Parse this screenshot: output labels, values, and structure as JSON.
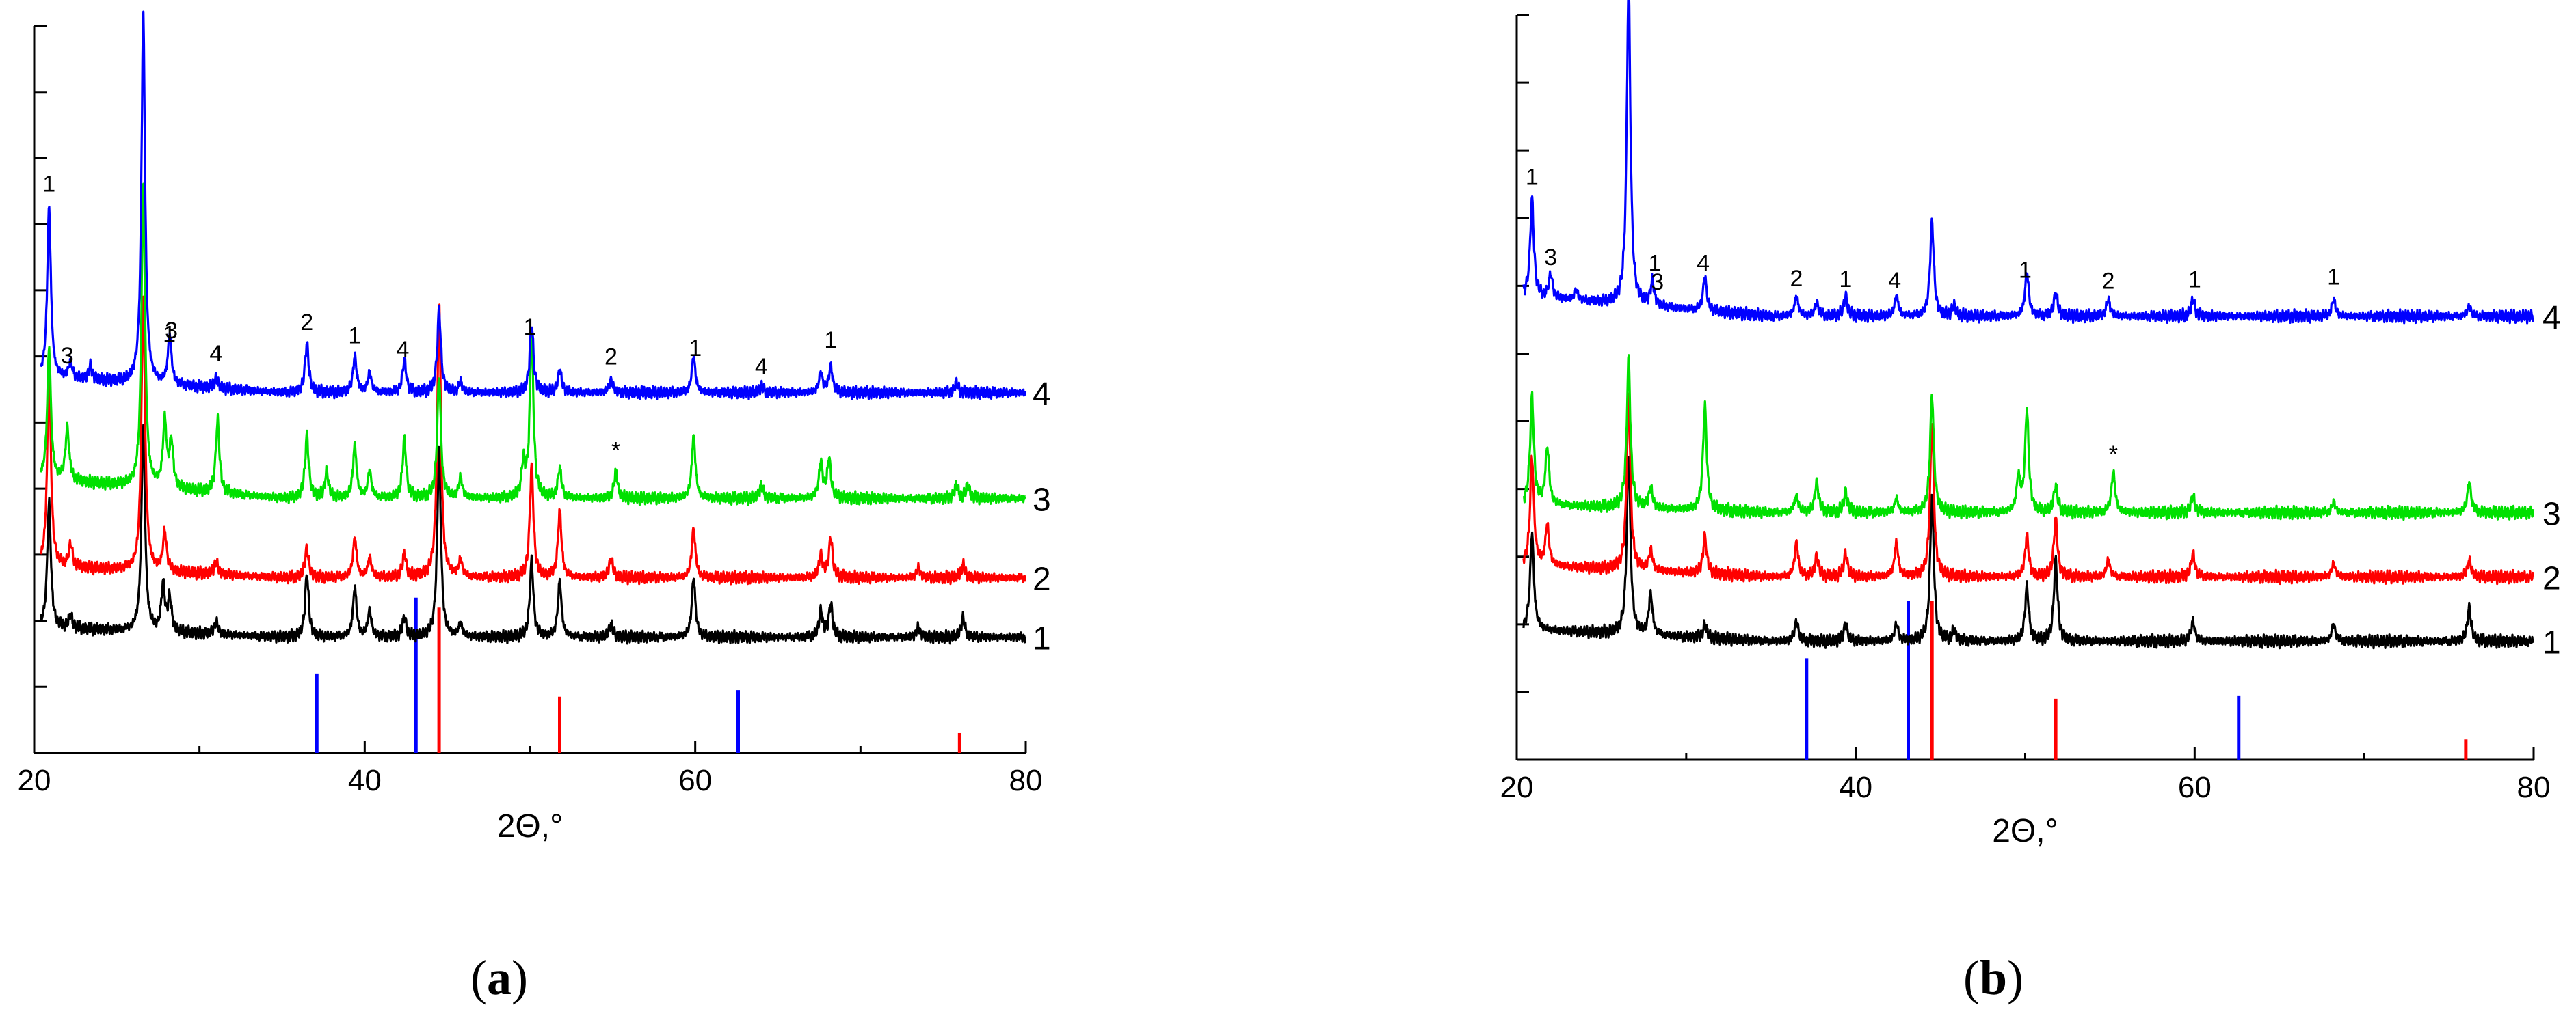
{
  "colors": {
    "curve_1": "#000000",
    "curve_2": "#ff0000",
    "curve_3": "#00e000",
    "curve_4": "#0000ff",
    "ref_a": "#0000ff",
    "ref_b": "#ff0000"
  },
  "panels": [
    {
      "label": "a",
      "xlabel": "2Θ,°",
      "xticks": [
        "20",
        "40",
        "60",
        "80"
      ],
      "curve_labels": [
        "1",
        "2",
        "3",
        "4"
      ],
      "peak_labels": [
        {
          "text": "1",
          "x": 20.9,
          "curve": 4
        },
        {
          "text": "3",
          "x": 22.0,
          "curve": 4
        },
        {
          "text": "1",
          "x": 27.1,
          "curve": 4
        },
        {
          "text": "3",
          "x": 28.3,
          "curve": 4
        },
        {
          "text": "4",
          "x": 31.0,
          "curve": 4
        },
        {
          "text": "2",
          "x": 36.5,
          "curve": 4
        },
        {
          "text": "1",
          "x": 39.4,
          "curve": 4
        },
        {
          "text": "4",
          "x": 42.3,
          "curve": 4
        },
        {
          "text": "1",
          "x": 50.0,
          "curve": 4
        },
        {
          "text": "2",
          "x": 54.9,
          "curve": 4
        },
        {
          "text": "1",
          "x": 60.0,
          "curve": 4
        },
        {
          "text": "4",
          "x": 64.0,
          "curve": 4
        },
        {
          "text": "1",
          "x": 68.2,
          "curve": 4
        },
        {
          "text": "*",
          "x": 55.2,
          "curve": 3
        }
      ]
    },
    {
      "label": "b",
      "xlabel": "2Θ,°",
      "xticks": [
        "20",
        "40",
        "60",
        "80"
      ],
      "curve_labels": [
        "1",
        "2",
        "3",
        "4"
      ],
      "peak_labels": [
        {
          "text": "1",
          "x": 20.9,
          "curve": 4
        },
        {
          "text": "3",
          "x": 22.0,
          "curve": 4
        },
        {
          "text": "1",
          "x": 27.1,
          "curve": 4
        },
        {
          "text": "3",
          "x": 28.3,
          "curve": 4
        },
        {
          "text": "4",
          "x": 31.0,
          "curve": 4
        },
        {
          "text": "2",
          "x": 36.5,
          "curve": 4
        },
        {
          "text": "1",
          "x": 39.4,
          "curve": 4
        },
        {
          "text": "4",
          "x": 42.3,
          "curve": 4
        },
        {
          "text": "1",
          "x": 50.0,
          "curve": 4
        },
        {
          "text": "2",
          "x": 54.9,
          "curve": 4
        },
        {
          "text": "1",
          "x": 60.0,
          "curve": 4
        },
        {
          "text": "1",
          "x": 68.2,
          "curve": 4
        },
        {
          "text": "*",
          "x": 55.2,
          "curve": 3
        }
      ]
    }
  ],
  "chart_data": [
    {
      "type": "line",
      "panel": "a",
      "xlabel": "2Θ,°",
      "xlim": [
        20,
        80
      ],
      "ylim": [
        0,
        11
      ],
      "x_ticks": [
        20,
        40,
        60,
        80
      ],
      "reference_lines": [
        {
          "x": 37.1,
          "height": 1.2,
          "color": "#0000ff"
        },
        {
          "x": 43.1,
          "height": 2.35,
          "color": "#0000ff"
        },
        {
          "x": 44.5,
          "height": 2.2,
          "color": "#ff0000"
        },
        {
          "x": 51.8,
          "height": 0.85,
          "color": "#ff0000"
        },
        {
          "x": 62.6,
          "height": 0.95,
          "color": "#0000ff"
        },
        {
          "x": 76.0,
          "height": 0.3,
          "color": "#ff0000"
        }
      ],
      "series": [
        {
          "name": "1",
          "baseline": 1.75,
          "tilt": 0.25,
          "color": "#000000",
          "peaks": [
            [
              20.9,
              1.9
            ],
            [
              22.2,
              0.2
            ],
            [
              26.6,
              3.1
            ],
            [
              27.8,
              0.7
            ],
            [
              28.2,
              0.5
            ],
            [
              31.0,
              0.2
            ],
            [
              36.5,
              0.95
            ],
            [
              39.4,
              0.75
            ],
            [
              40.3,
              0.4
            ],
            [
              42.4,
              0.3
            ],
            [
              44.5,
              2.85
            ],
            [
              45.8,
              0.2
            ],
            [
              50.1,
              1.15
            ],
            [
              51.8,
              0.85
            ],
            [
              54.9,
              0.2
            ],
            [
              59.9,
              0.9
            ],
            [
              67.6,
              0.4
            ],
            [
              68.2,
              0.5
            ],
            [
              73.5,
              0.15
            ],
            [
              76.2,
              0.3
            ]
          ]
        },
        {
          "name": "2",
          "baseline": 2.65,
          "tilt": 0.3,
          "color": "#ff0000",
          "peaks": [
            [
              20.9,
              3.0
            ],
            [
              22.2,
              0.35
            ],
            [
              26.6,
              4.2
            ],
            [
              27.9,
              0.6
            ],
            [
              31.0,
              0.2
            ],
            [
              36.5,
              0.45
            ],
            [
              39.4,
              0.6
            ],
            [
              40.3,
              0.3
            ],
            [
              42.4,
              0.35
            ],
            [
              44.5,
              4.2
            ],
            [
              45.8,
              0.25
            ],
            [
              50.1,
              1.7
            ],
            [
              51.8,
              1.0
            ],
            [
              54.9,
              0.3
            ],
            [
              59.9,
              0.75
            ],
            [
              67.6,
              0.35
            ],
            [
              68.2,
              0.6
            ],
            [
              73.5,
              0.15
            ],
            [
              76.2,
              0.2
            ]
          ]
        },
        {
          "name": "3",
          "baseline": 3.85,
          "tilt": 0.5,
          "color": "#00e000",
          "peaks": [
            [
              20.9,
              2.0
            ],
            [
              22.0,
              0.8
            ],
            [
              26.6,
              4.6
            ],
            [
              27.9,
              1.0
            ],
            [
              28.3,
              0.7
            ],
            [
              31.1,
              1.1
            ],
            [
              36.5,
              0.95
            ],
            [
              37.7,
              0.4
            ],
            [
              39.4,
              0.8
            ],
            [
              40.3,
              0.4
            ],
            [
              42.4,
              0.9
            ],
            [
              44.5,
              1.85
            ],
            [
              45.8,
              0.3
            ],
            [
              49.6,
              0.5
            ],
            [
              50.1,
              2.5
            ],
            [
              51.8,
              0.45
            ],
            [
              55.2,
              0.4
            ],
            [
              59.9,
              0.95
            ],
            [
              64.0,
              0.2
            ],
            [
              67.6,
              0.55
            ],
            [
              68.1,
              0.6
            ],
            [
              75.8,
              0.2
            ],
            [
              76.5,
              0.2
            ]
          ]
        },
        {
          "name": "4",
          "baseline": 5.45,
          "tilt": 0.4,
          "color": "#0000ff",
          "peaks": [
            [
              20.9,
              2.6
            ],
            [
              22.2,
              0.25
            ],
            [
              23.4,
              0.2
            ],
            [
              26.6,
              5.6
            ],
            [
              28.2,
              0.75
            ],
            [
              31.0,
              0.15
            ],
            [
              36.5,
              0.75
            ],
            [
              39.4,
              0.55
            ],
            [
              40.3,
              0.3
            ],
            [
              42.4,
              0.5
            ],
            [
              44.5,
              1.25
            ],
            [
              45.8,
              0.15
            ],
            [
              50.1,
              1.05
            ],
            [
              51.8,
              0.35
            ],
            [
              54.9,
              0.2
            ],
            [
              59.9,
              0.55
            ],
            [
              64.0,
              0.1
            ],
            [
              67.6,
              0.3
            ],
            [
              68.2,
              0.4
            ],
            [
              75.8,
              0.15
            ]
          ]
        }
      ]
    },
    {
      "type": "line",
      "panel": "b",
      "xlabel": "2Θ,°",
      "xlim": [
        20,
        80
      ],
      "ylim": [
        0,
        11
      ],
      "x_ticks": [
        20,
        40,
        60,
        80
      ],
      "reference_lines": [
        {
          "x": 37.1,
          "height": 1.5,
          "color": "#0000ff"
        },
        {
          "x": 43.1,
          "height": 2.35,
          "color": "#0000ff"
        },
        {
          "x": 44.5,
          "height": 2.35,
          "color": "#ff0000"
        },
        {
          "x": 51.8,
          "height": 0.9,
          "color": "#ff0000"
        },
        {
          "x": 62.6,
          "height": 0.95,
          "color": "#0000ff"
        },
        {
          "x": 76.0,
          "height": 0.3,
          "color": "#ff0000"
        }
      ],
      "series": [
        {
          "name": "1",
          "baseline": 1.75,
          "tilt": 0.3,
          "color": "#000000",
          "peaks": [
            [
              20.9,
              1.45
            ],
            [
              26.6,
              2.65
            ],
            [
              27.9,
              0.6
            ],
            [
              31.1,
              0.2
            ],
            [
              36.5,
              0.3
            ],
            [
              39.4,
              0.25
            ],
            [
              42.4,
              0.25
            ],
            [
              44.5,
              2.15
            ],
            [
              45.8,
              0.15
            ],
            [
              50.1,
              0.8
            ],
            [
              51.8,
              1.2
            ],
            [
              59.9,
              0.3
            ],
            [
              68.2,
              0.25
            ],
            [
              76.2,
              0.5
            ]
          ]
        },
        {
          "name": "2",
          "baseline": 2.7,
          "tilt": 0.3,
          "color": "#ff0000",
          "peaks": [
            [
              20.9,
              1.6
            ],
            [
              21.8,
              0.6
            ],
            [
              26.6,
              2.6
            ],
            [
              27.9,
              0.3
            ],
            [
              31.1,
              0.55
            ],
            [
              36.5,
              0.5
            ],
            [
              37.7,
              0.3
            ],
            [
              39.4,
              0.35
            ],
            [
              42.4,
              0.5
            ],
            [
              44.5,
              2.3
            ],
            [
              50.1,
              0.6
            ],
            [
              51.8,
              0.85
            ],
            [
              54.9,
              0.25
            ],
            [
              59.9,
              0.35
            ],
            [
              68.2,
              0.2
            ],
            [
              76.2,
              0.25
            ]
          ]
        },
        {
          "name": "3",
          "baseline": 3.65,
          "tilt": 0.2,
          "color": "#00e000",
          "peaks": [
            [
              20.9,
              1.6
            ],
            [
              21.8,
              0.85
            ],
            [
              26.6,
              2.2
            ],
            [
              27.9,
              0.3
            ],
            [
              31.1,
              1.55
            ],
            [
              36.5,
              0.25
            ],
            [
              37.7,
              0.45
            ],
            [
              39.4,
              0.3
            ],
            [
              42.4,
              0.2
            ],
            [
              44.5,
              1.75
            ],
            [
              49.6,
              0.5
            ],
            [
              50.1,
              1.5
            ],
            [
              51.8,
              0.4
            ],
            [
              55.2,
              0.6
            ],
            [
              59.9,
              0.25
            ],
            [
              68.2,
              0.15
            ],
            [
              76.2,
              0.45
            ]
          ]
        },
        {
          "name": "4",
          "baseline": 6.55,
          "tilt": 0.5,
          "color": "#0000ff",
          "peaks": [
            [
              20.9,
              1.45
            ],
            [
              22.0,
              0.35
            ],
            [
              23.5,
              0.15
            ],
            [
              26.6,
              4.75
            ],
            [
              28.0,
              0.35
            ],
            [
              31.1,
              0.5
            ],
            [
              36.5,
              0.3
            ],
            [
              37.7,
              0.2
            ],
            [
              39.4,
              0.3
            ],
            [
              42.4,
              0.3
            ],
            [
              44.5,
              1.4
            ],
            [
              45.8,
              0.15
            ],
            [
              50.1,
              0.65
            ],
            [
              51.8,
              0.35
            ],
            [
              54.9,
              0.25
            ],
            [
              59.9,
              0.25
            ],
            [
              68.2,
              0.25
            ],
            [
              76.2,
              0.15
            ]
          ]
        }
      ]
    }
  ]
}
